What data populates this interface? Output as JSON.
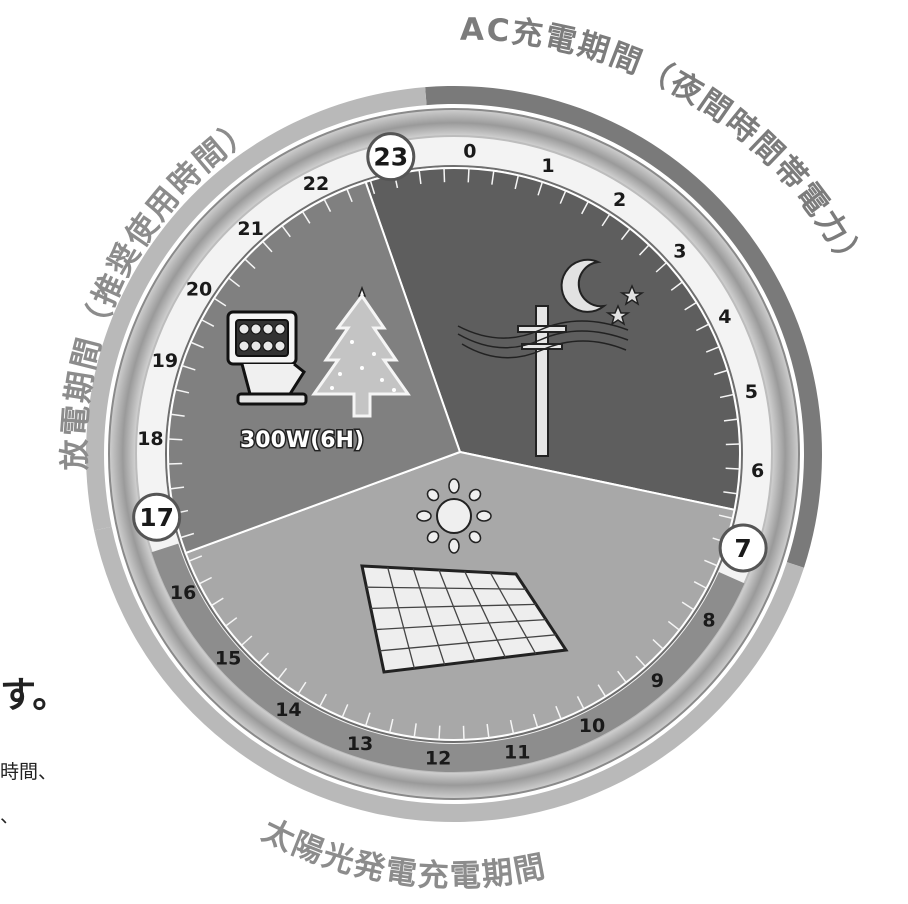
{
  "arc_labels": {
    "discharge": "放電期間（推奨使用時間）",
    "ac_charge": "AC充電期間（夜間時間帯電力）",
    "solar_charge": "太陽光発電充電期間"
  },
  "hours": [
    "0",
    "1",
    "2",
    "3",
    "4",
    "5",
    "6",
    "7",
    "8",
    "9",
    "10",
    "11",
    "12",
    "13",
    "14",
    "15",
    "16",
    "17",
    "18",
    "19",
    "20",
    "21",
    "22",
    "23"
  ],
  "highlighted_hours": [
    "23",
    "7",
    "17"
  ],
  "power_label": "300W(6H)",
  "cut_text": {
    "big": "す。",
    "line1": "時間、",
    "line2": "、"
  },
  "colors": {
    "ac_sector": "#5e5e5e",
    "discharge_sector": "#808080",
    "solar_sector": "#a8a8a8",
    "ring_dark": "#7a7a7a",
    "ring_light": "#b9b9b9",
    "background": "#ffffff"
  },
  "icons": [
    "floodlight-icon",
    "christmas-tree-icon",
    "moon-icon",
    "star-icon",
    "utility-pole-icon",
    "sun-icon",
    "solar-panel-icon"
  ]
}
